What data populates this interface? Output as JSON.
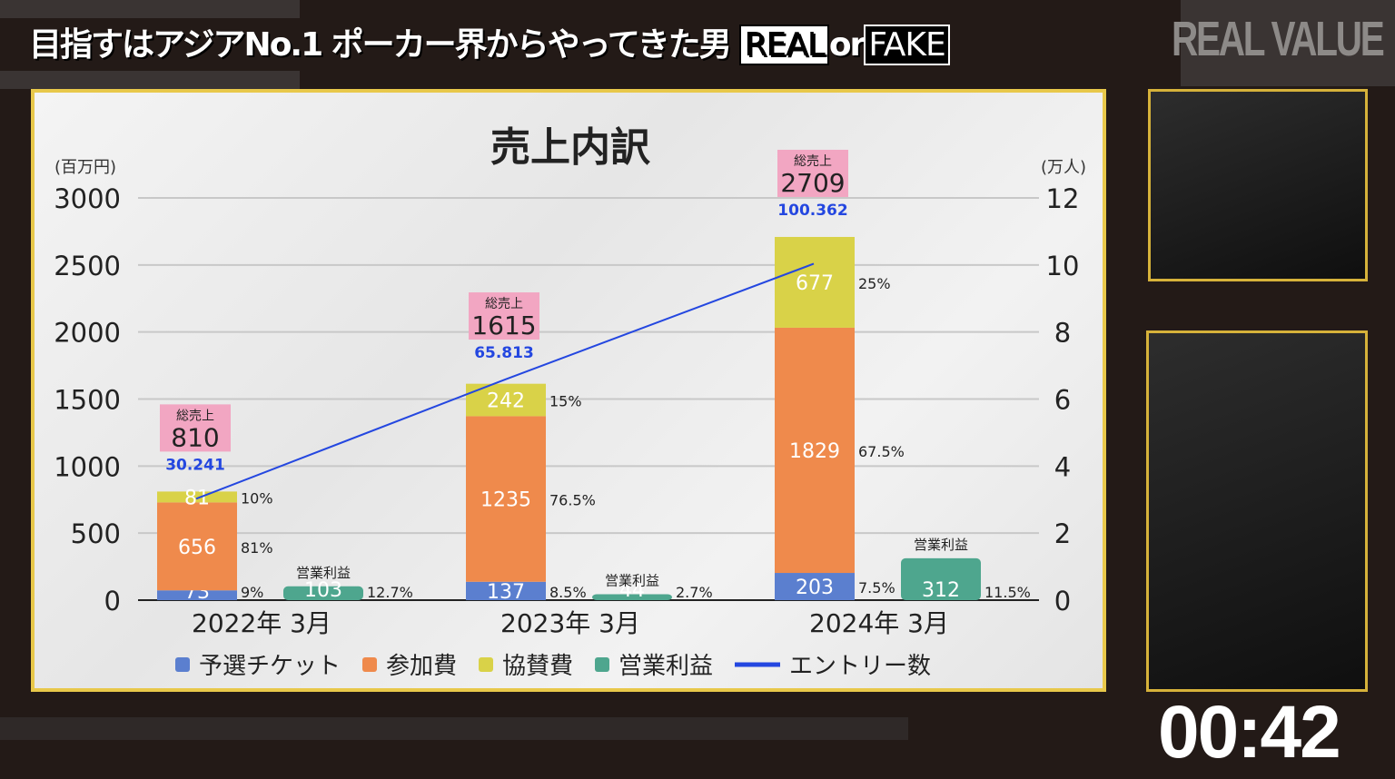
{
  "show_title": {
    "main": "目指すはアジアNo.1 ポーカー界からやってきた男",
    "real": "REAL",
    "or": "or",
    "fake": "FAKE"
  },
  "logo": "REAL VALUE",
  "timer": "00:42",
  "chart_data": {
    "type": "bar",
    "title": "売上内訳",
    "ylabel_left": "(百万円)",
    "ylabel_right": "(万人)",
    "ylim_left": [
      0,
      3000
    ],
    "yticks_left": [
      "0",
      "500",
      "1000",
      "1500",
      "2000",
      "2500",
      "3000"
    ],
    "ylim_right": [
      0,
      12
    ],
    "yticks_right": [
      "0",
      "2",
      "4",
      "6",
      "8",
      "10",
      "12"
    ],
    "categories": [
      "2022年 3月",
      "2023年 3月",
      "2024年 3月"
    ],
    "stacked_series": [
      {
        "name": "予選チケット",
        "color": "#5b7fcf",
        "values": [
          73,
          137,
          203
        ],
        "percents": [
          "9%",
          "8.5%",
          "7.5%"
        ]
      },
      {
        "name": "参加費",
        "color": "#ef8a4c",
        "values": [
          656,
          1235,
          1829
        ],
        "percents": [
          "81%",
          "76.5%",
          "67.5%"
        ]
      },
      {
        "name": "協賛費",
        "color": "#d9d248",
        "values": [
          81,
          242,
          677
        ],
        "percents": [
          "10%",
          "15%",
          "25%"
        ]
      }
    ],
    "profit_series": {
      "name": "営業利益",
      "label": "営業利益",
      "color": "#4ea68e",
      "values": [
        103,
        44,
        312
      ],
      "percents": [
        "12.7%",
        "2.7%",
        "11.5%"
      ]
    },
    "total_label": "総売上",
    "totals": [
      810,
      1615,
      2709
    ],
    "line_series": {
      "name": "エントリー数",
      "color": "#2447e0",
      "values": [
        "30.241",
        "65.813",
        "100.362"
      ]
    },
    "legend_position": "bottom",
    "grid": true
  }
}
